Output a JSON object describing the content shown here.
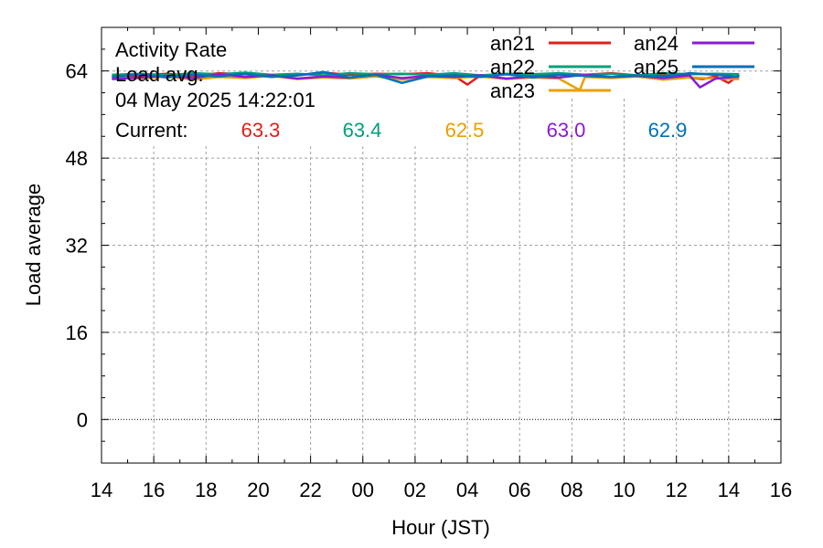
{
  "chart_data": {
    "type": "line",
    "title_lines": [
      "Activity Rate",
      "Load avg.",
      "04 May 2025 14:22:01"
    ],
    "current_label": "Current:",
    "xlabel": "Hour (JST)",
    "ylabel": "Load average",
    "xlim": [
      14,
      40
    ],
    "ylim": [
      -8,
      72
    ],
    "x_ticks": [
      {
        "v": 14,
        "label": "14"
      },
      {
        "v": 16,
        "label": "16"
      },
      {
        "v": 18,
        "label": "18"
      },
      {
        "v": 20,
        "label": "20"
      },
      {
        "v": 22,
        "label": "22"
      },
      {
        "v": 24,
        "label": "00"
      },
      {
        "v": 26,
        "label": "02"
      },
      {
        "v": 28,
        "label": "04"
      },
      {
        "v": 30,
        "label": "06"
      },
      {
        "v": 32,
        "label": "08"
      },
      {
        "v": 34,
        "label": "10"
      },
      {
        "v": 36,
        "label": "12"
      },
      {
        "v": 38,
        "label": "14"
      },
      {
        "v": 40,
        "label": "16"
      }
    ],
    "y_ticks": [
      {
        "v": 0,
        "label": "0"
      },
      {
        "v": 16,
        "label": "16"
      },
      {
        "v": 32,
        "label": "32"
      },
      {
        "v": 48,
        "label": "48"
      },
      {
        "v": 64,
        "label": "64"
      }
    ],
    "grid": true,
    "legend_position": "top-right",
    "series": [
      {
        "name": "an21",
        "color": "#e0201b",
        "current": "63.3",
        "x": [
          14.4,
          15.5,
          16.5,
          17.5,
          18.5,
          19.5,
          20.5,
          21.5,
          22.5,
          23.5,
          24.5,
          25.5,
          26.5,
          27.5,
          28,
          28.5,
          29.5,
          30.5,
          31.5,
          32.5,
          33.5,
          34.5,
          35.5,
          36.5,
          37,
          37.5,
          38,
          38.4
        ],
        "y": [
          63.0,
          63.2,
          63.5,
          63.1,
          63.6,
          63.4,
          63.0,
          63.2,
          63.7,
          63.3,
          63.5,
          63.4,
          63.6,
          63.1,
          61.5,
          63.2,
          63.4,
          63.0,
          63.5,
          63.3,
          63.6,
          63.2,
          63.4,
          62.8,
          62.5,
          63.0,
          61.8,
          63.3
        ]
      },
      {
        "name": "an22",
        "color": "#00a07a",
        "current": "63.4",
        "x": [
          14.4,
          15.5,
          16.5,
          17.5,
          18.5,
          19.5,
          20.5,
          21.5,
          22.5,
          23.5,
          24.5,
          25.5,
          26.5,
          27.5,
          28.5,
          29.5,
          30.5,
          31.5,
          32.5,
          33.5,
          34.5,
          35.5,
          36.5,
          37.5,
          38.4
        ],
        "y": [
          63.3,
          63.5,
          63.2,
          63.6,
          63.4,
          63.7,
          63.3,
          63.5,
          63.2,
          63.6,
          63.4,
          63.5,
          63.3,
          63.6,
          63.2,
          63.5,
          63.4,
          63.6,
          63.3,
          63.5,
          63.2,
          63.6,
          63.4,
          63.5,
          63.4
        ]
      },
      {
        "name": "an23",
        "color": "#e8a000",
        "current": "62.5",
        "x": [
          14.4,
          15.5,
          16.5,
          17.5,
          18.5,
          19.5,
          20.5,
          21.5,
          22.5,
          23.5,
          24.5,
          25.5,
          26.5,
          27.5,
          28.5,
          29.5,
          30.5,
          31.5,
          32.3,
          32.5,
          33.5,
          34.5,
          35.5,
          36.5,
          37.5,
          38.4
        ],
        "y": [
          62.8,
          62.6,
          63.0,
          62.4,
          62.9,
          62.7,
          63.1,
          62.5,
          62.8,
          62.6,
          63.0,
          62.4,
          62.9,
          62.7,
          63.0,
          62.5,
          62.8,
          62.6,
          60.5,
          62.9,
          62.7,
          63.0,
          62.4,
          62.8,
          62.6,
          62.5
        ]
      },
      {
        "name": "an24",
        "color": "#8a1ad8",
        "current": "63.0",
        "x": [
          14.4,
          15.5,
          16.5,
          17.5,
          18.5,
          19.5,
          20.5,
          21.5,
          22.5,
          23.5,
          24.5,
          25.5,
          26.5,
          27.5,
          28.5,
          29.5,
          30.5,
          31.5,
          32.5,
          33.5,
          34.5,
          35.5,
          36.5,
          36.9,
          37.5,
          38.4
        ],
        "y": [
          62.5,
          62.8,
          63.1,
          62.7,
          63.4,
          62.9,
          63.2,
          62.6,
          63.0,
          62.8,
          63.3,
          62.7,
          63.1,
          62.9,
          63.2,
          62.6,
          63.0,
          62.8,
          63.3,
          62.9,
          63.1,
          62.7,
          63.2,
          61.0,
          62.6,
          63.0
        ]
      },
      {
        "name": "an25",
        "color": "#0070b8",
        "current": "62.9",
        "x": [
          14.4,
          15.5,
          16.5,
          17.5,
          18.5,
          19.5,
          20.5,
          21.5,
          22.5,
          23.5,
          24.5,
          25.5,
          26.5,
          27.5,
          28.5,
          29.5,
          30.5,
          31.5,
          32.5,
          33.5,
          34.5,
          35.5,
          36.5,
          37.5,
          38.4
        ],
        "y": [
          62.9,
          63.4,
          62.8,
          63.3,
          63.0,
          63.5,
          62.9,
          63.2,
          63.8,
          62.8,
          63.3,
          61.8,
          63.0,
          63.2,
          62.9,
          63.4,
          62.8,
          63.3,
          63.1,
          62.9,
          63.2,
          63.0,
          63.6,
          63.3,
          62.9
        ]
      }
    ]
  }
}
